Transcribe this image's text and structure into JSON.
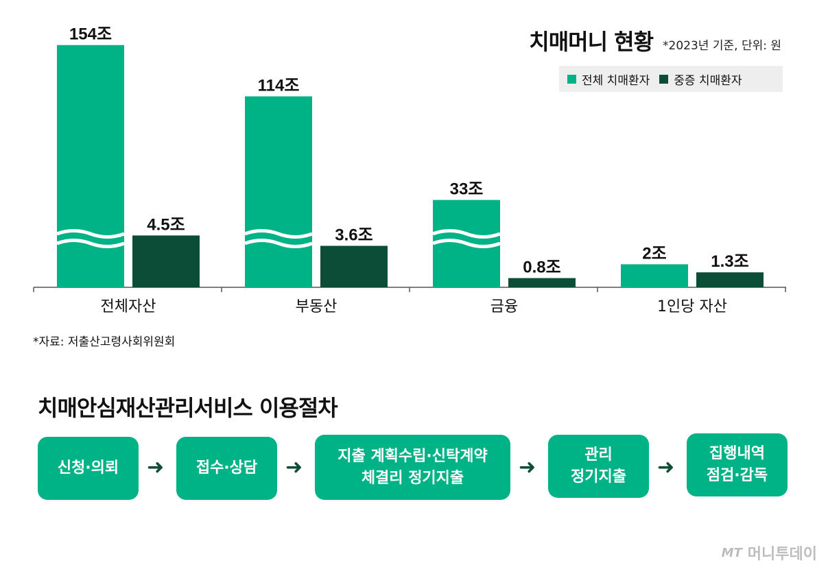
{
  "chart_data": {
    "type": "bar",
    "title": "치매머니 현황",
    "subtitle": "*2023년 기준, 단위: 원",
    "categories": [
      "전체자산",
      "부동산",
      "금융",
      "1인당 자산"
    ],
    "series": [
      {
        "name": "전체 치매환자",
        "values": [
          154,
          114,
          33,
          2
        ],
        "labels": [
          "154조",
          "114조",
          "33조",
          "2조"
        ],
        "color": "#00b386"
      },
      {
        "name": "중증 치매환자",
        "values": [
          4.5,
          3.6,
          0.8,
          1.3
        ],
        "labels": [
          "4.5조",
          "3.6조",
          "0.8조",
          "1.3조"
        ],
        "color": "#0b4d36"
      }
    ],
    "axis_break": true,
    "grid": false,
    "legend_position": "top-right"
  },
  "source": "*자료: 저출산고령사회위원회",
  "process": {
    "title": "치매안심재산관리서비스 이용절차",
    "steps": [
      "신청·의뢰",
      "접수·상담",
      "지출 계획수립·신탁계약\n체결리 정기지출",
      "관리\n정기지출",
      "집행내역\n점검·감독"
    ]
  },
  "watermark": {
    "mark": "MT",
    "brand": "머니투데이"
  }
}
